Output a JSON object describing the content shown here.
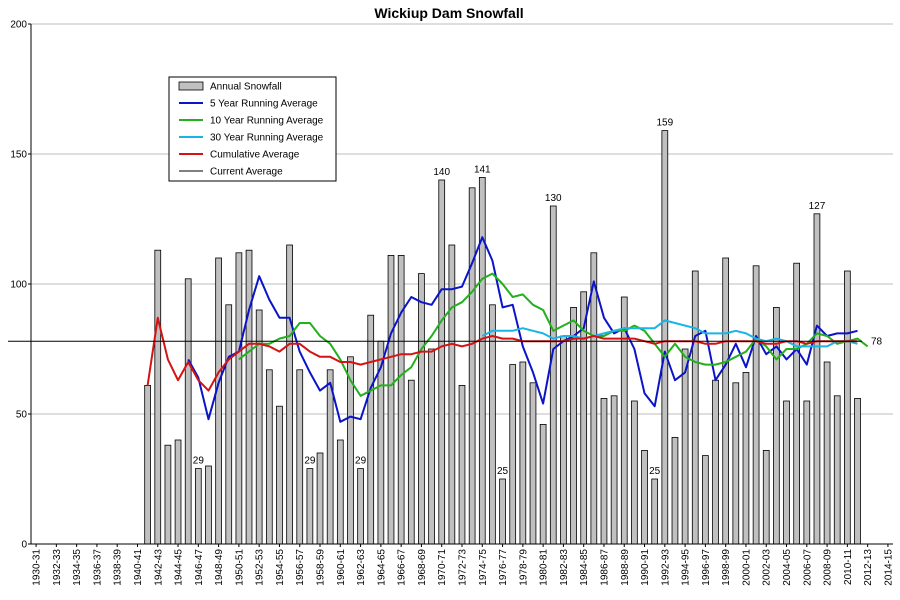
{
  "chart_data": {
    "type": "bar",
    "title": "Wickiup Dam Snowfall",
    "xlabel": "",
    "ylabel": "",
    "ylim": [
      0,
      200
    ],
    "yticks": [
      0,
      50,
      100,
      150,
      200
    ],
    "grid": true,
    "legend_position": "top-left",
    "x_tick_labels": [
      "1930-31",
      "1932-33",
      "1934-35",
      "1936-37",
      "1938-39",
      "1940-41",
      "1942-43",
      "1944-45",
      "1946-47",
      "1948-49",
      "1950-51",
      "1952-53",
      "1954-55",
      "1956-57",
      "1958-59",
      "1960-61",
      "1962-63",
      "1964-65",
      "1966-67",
      "1968-69",
      "1970-71",
      "1972-73",
      "1974-75",
      "1976-77",
      "1978-79",
      "1980-81",
      "1982-83",
      "1984-85",
      "1986-87",
      "1988-89",
      "1990-91",
      "1992-93",
      "1994-95",
      "1996-97",
      "1998-99",
      "2000-01",
      "2002-03",
      "2004-05",
      "2006-07",
      "2008-09",
      "2010-11",
      "2012-13",
      "2014-15"
    ],
    "categories": [
      "1930-31",
      "1931-32",
      "1932-33",
      "1933-34",
      "1934-35",
      "1935-36",
      "1936-37",
      "1937-38",
      "1938-39",
      "1939-40",
      "1940-41",
      "1941-42",
      "1942-43",
      "1943-44",
      "1944-45",
      "1945-46",
      "1946-47",
      "1947-48",
      "1948-49",
      "1949-50",
      "1950-51",
      "1951-52",
      "1952-53",
      "1953-54",
      "1954-55",
      "1955-56",
      "1956-57",
      "1957-58",
      "1958-59",
      "1959-60",
      "1960-61",
      "1961-62",
      "1962-63",
      "1963-64",
      "1964-65",
      "1965-66",
      "1966-67",
      "1967-68",
      "1968-69",
      "1969-70",
      "1970-71",
      "1971-72",
      "1972-73",
      "1973-74",
      "1974-75",
      "1975-76",
      "1976-77",
      "1977-78",
      "1978-79",
      "1979-80",
      "1980-81",
      "1981-82",
      "1982-83",
      "1983-84",
      "1984-85",
      "1985-86",
      "1986-87",
      "1987-88",
      "1988-89",
      "1989-90",
      "1990-91",
      "1991-92",
      "1992-93",
      "1993-94",
      "1994-95",
      "1995-96",
      "1996-97",
      "1997-98",
      "1998-99",
      "1999-00",
      "2000-01",
      "2001-02",
      "2002-03",
      "2003-04",
      "2004-05",
      "2005-06",
      "2006-07",
      "2007-08",
      "2008-09",
      "2009-10",
      "2010-11",
      "2011-12",
      "2012-13",
      "2013-14",
      "2014-15"
    ],
    "series": [
      {
        "name": "Annual Snowfall",
        "kind": "bar",
        "color": "#c0c0c0",
        "values": [
          null,
          null,
          null,
          null,
          null,
          null,
          null,
          null,
          null,
          null,
          null,
          61,
          113,
          38,
          40,
          102,
          29,
          30,
          110,
          92,
          112,
          113,
          90,
          67,
          53,
          115,
          67,
          29,
          35,
          67,
          40,
          72,
          29,
          88,
          78,
          111,
          111,
          63,
          104,
          75,
          140,
          115,
          61,
          137,
          141,
          92,
          25,
          69,
          70,
          62,
          46,
          130,
          80,
          91,
          97,
          112,
          56,
          57,
          95,
          55,
          36,
          25,
          159,
          41,
          75,
          105,
          34,
          63,
          110,
          62,
          66,
          107,
          36,
          91,
          55,
          108,
          55,
          127,
          70,
          57,
          105,
          56,
          null,
          null,
          null
        ]
      },
      {
        "name": "5 Year Running Average",
        "kind": "line",
        "color": "#0a14c8",
        "values": [
          null,
          null,
          null,
          null,
          null,
          null,
          null,
          null,
          null,
          null,
          null,
          null,
          null,
          null,
          null,
          71,
          64,
          48,
          62,
          72,
          74,
          90,
          103,
          94,
          87,
          87,
          74,
          66,
          59,
          62,
          47,
          49,
          48,
          60,
          68,
          81,
          89,
          95,
          93,
          92,
          98,
          98,
          99,
          108,
          118,
          109,
          91,
          92,
          76,
          66,
          54,
          75,
          78,
          80,
          83,
          101,
          87,
          81,
          83,
          75,
          58,
          53,
          74,
          63,
          66,
          80,
          82,
          63,
          69,
          77,
          68,
          80,
          73,
          76,
          71,
          75,
          69,
          84,
          80,
          81,
          81,
          82,
          null,
          null,
          null
        ]
      },
      {
        "name": "10 Year Running Average",
        "kind": "line",
        "color": "#22b01c",
        "values": [
          null,
          null,
          null,
          null,
          null,
          null,
          null,
          null,
          null,
          null,
          null,
          null,
          null,
          null,
          null,
          null,
          null,
          null,
          null,
          null,
          71,
          74,
          77,
          77,
          79,
          80,
          85,
          85,
          80,
          77,
          71,
          63,
          57,
          59,
          61,
          61,
          65,
          68,
          75,
          80,
          86,
          91,
          93,
          97,
          102,
          104,
          100,
          95,
          96,
          92,
          90,
          82,
          84,
          86,
          82,
          80,
          80,
          82,
          82,
          84,
          82,
          77,
          72,
          77,
          72,
          70,
          69,
          69,
          70,
          72,
          74,
          79,
          76,
          71,
          75,
          75,
          77,
          81,
          80,
          77,
          78,
          79,
          76,
          null,
          null
        ]
      },
      {
        "name": "30 Year Running Average",
        "kind": "line",
        "color": "#1ab4e6",
        "values": [
          null,
          null,
          null,
          null,
          null,
          null,
          null,
          null,
          null,
          null,
          null,
          null,
          null,
          null,
          null,
          null,
          null,
          null,
          null,
          null,
          null,
          null,
          null,
          null,
          null,
          null,
          null,
          null,
          null,
          null,
          null,
          null,
          null,
          null,
          null,
          null,
          null,
          null,
          null,
          null,
          null,
          null,
          null,
          null,
          80,
          82,
          82,
          82,
          83,
          82,
          81,
          79,
          80,
          80,
          79,
          80,
          81,
          82,
          83,
          83,
          83,
          83,
          86,
          85,
          84,
          83,
          81,
          81,
          81,
          82,
          81,
          79,
          78,
          79,
          78,
          76,
          76,
          76,
          76,
          78,
          78,
          77,
          null,
          null,
          null
        ]
      },
      {
        "name": "Cumulative Average",
        "kind": "line",
        "color": "#d41414",
        "values": [
          null,
          null,
          null,
          null,
          null,
          null,
          null,
          null,
          null,
          null,
          null,
          61,
          87,
          71,
          63,
          70,
          63,
          59,
          66,
          71,
          74,
          77,
          77,
          76,
          74,
          77,
          77,
          74,
          72,
          72,
          70,
          70,
          69,
          70,
          71,
          72,
          73,
          73,
          74,
          74,
          76,
          77,
          76,
          77,
          79,
          80,
          79,
          79,
          78,
          78,
          78,
          78,
          78,
          79,
          79,
          80,
          79,
          79,
          79,
          79,
          78,
          77,
          78,
          78,
          78,
          78,
          77,
          77,
          78,
          78,
          78,
          78,
          77,
          77,
          78,
          78,
          77,
          78,
          78,
          78,
          78,
          78,
          null,
          null,
          null
        ]
      },
      {
        "name": "Current Average",
        "kind": "hline",
        "color": "#000000",
        "value": 78
      }
    ],
    "annotations": [
      {
        "category": "1946-47",
        "text": "29"
      },
      {
        "category": "1957-58",
        "text": "29"
      },
      {
        "category": "1962-63",
        "text": "29"
      },
      {
        "category": "1970-71",
        "text": "140"
      },
      {
        "category": "1974-75",
        "text": "141"
      },
      {
        "category": "1976-77",
        "text": "25"
      },
      {
        "category": "1981-82",
        "text": "130"
      },
      {
        "category": "1991-92",
        "text": "25"
      },
      {
        "category": "1992-93",
        "text": "159"
      },
      {
        "category": "2007-08",
        "text": "127"
      }
    ],
    "current_average_label": "78"
  }
}
